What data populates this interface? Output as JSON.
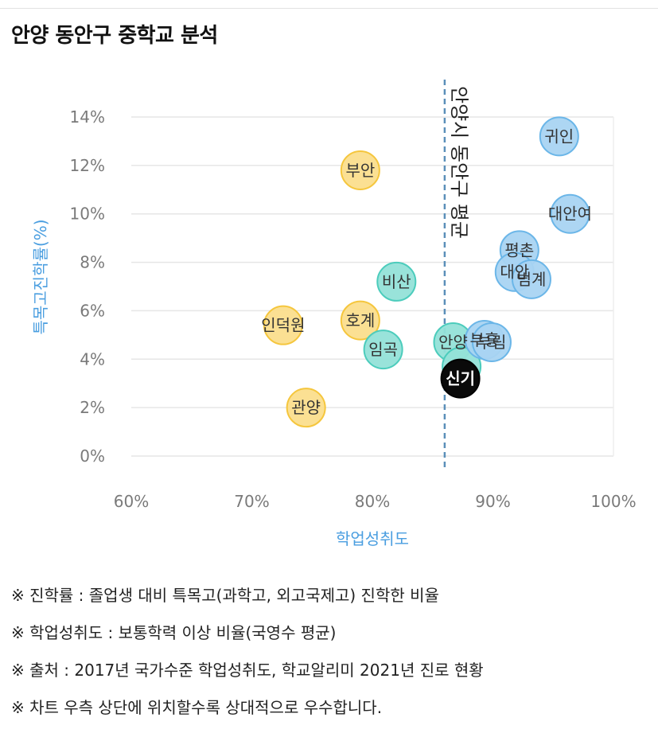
{
  "title": "안양 동안구 중학교 분석",
  "chart_data": {
    "type": "scatter",
    "title": "",
    "xlabel": "학업성취도",
    "ylabel": "특목고진학률(%)",
    "xlim": [
      60,
      100
    ],
    "ylim": [
      0,
      14
    ],
    "x_ticks": [
      "60%",
      "70%",
      "80%",
      "90%",
      "100%"
    ],
    "y_ticks": [
      "0%",
      "2%",
      "4%",
      "6%",
      "8%",
      "10%",
      "12%",
      "14%"
    ],
    "grid": true,
    "reference_line": {
      "x": 86,
      "label": "안양시 동안구 평균"
    },
    "points": [
      {
        "name": "귀인",
        "x": 95.5,
        "y": 13.2,
        "group": "blue"
      },
      {
        "name": "대안여",
        "x": 96.4,
        "y": 10.0,
        "group": "blue"
      },
      {
        "name": "평촌",
        "x": 92.2,
        "y": 8.5,
        "group": "blue"
      },
      {
        "name": "대안",
        "x": 91.8,
        "y": 7.6,
        "group": "blue"
      },
      {
        "name": "범계",
        "x": 93.2,
        "y": 7.3,
        "group": "blue"
      },
      {
        "name": "부흥",
        "x": 89.3,
        "y": 4.8,
        "group": "blue"
      },
      {
        "name": "부림",
        "x": 89.9,
        "y": 4.7,
        "group": "blue"
      },
      {
        "name": "부안",
        "x": 79.0,
        "y": 11.8,
        "group": "yellow"
      },
      {
        "name": "호계",
        "x": 79.0,
        "y": 5.6,
        "group": "yellow"
      },
      {
        "name": "인덕원",
        "x": 72.6,
        "y": 5.4,
        "group": "yellow"
      },
      {
        "name": "관양",
        "x": 74.5,
        "y": 2.0,
        "group": "yellow"
      },
      {
        "name": "비산",
        "x": 82.0,
        "y": 7.2,
        "group": "teal"
      },
      {
        "name": "임곡",
        "x": 80.9,
        "y": 4.4,
        "group": "teal"
      },
      {
        "name": "안양",
        "x": 86.7,
        "y": 4.7,
        "group": "teal"
      },
      {
        "name": "",
        "x": 87.4,
        "y": 3.7,
        "group": "teal"
      },
      {
        "name": "신기",
        "x": 87.3,
        "y": 3.2,
        "group": "black"
      }
    ],
    "colors": {
      "blue": {
        "fill": "#a9d4f2",
        "stroke": "#6bb6e8"
      },
      "yellow": {
        "fill": "#fbde8d",
        "stroke": "#f5c63d"
      },
      "teal": {
        "fill": "#94e2d8",
        "stroke": "#4cccbc"
      },
      "black": {
        "fill": "#0a0a0a",
        "stroke": "#000000"
      }
    },
    "axis_label_color": "#4a9ee0"
  },
  "notes": [
    "※ 진학률 : 졸업생 대비 특목고(과학고, 외고국제고) 진학한 비율",
    "※ 학업성취도 : 보통학력 이상 비율(국영수 평균)",
    "※ 출처 : 2017년 국가수준 학업성취도, 학교알리미 2021년 진로 현황",
    "※ 차트 우측 상단에 위치할수록 상대적으로 우수합니다."
  ]
}
